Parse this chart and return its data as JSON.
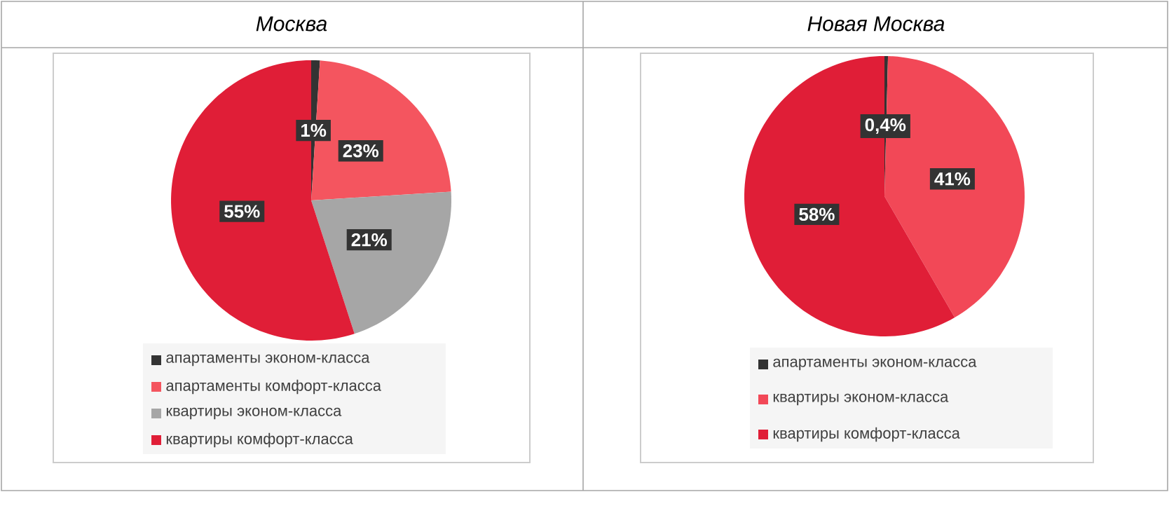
{
  "chart_data": [
    {
      "type": "pie",
      "title": "Москва",
      "categories": [
        "апартаменты эконом-класса",
        "апартаменты комфорт-класса",
        "квартиры эконом-класса",
        "квартиры комфорт-класса"
      ],
      "values": [
        1,
        23,
        21,
        55
      ],
      "value_labels": [
        "1%",
        "23%",
        "21%",
        "55%"
      ],
      "colors": [
        "#333333",
        "#f4555f",
        "#a6a6a6",
        "#e01e37"
      ],
      "legend": "bottom"
    },
    {
      "type": "pie",
      "title": "Новая Москва",
      "categories": [
        "апартаменты эконом-класса",
        "квартиры эконом-класса",
        "квартиры комфорт-класса"
      ],
      "values": [
        0.4,
        41,
        58
      ],
      "value_labels": [
        "0,4%",
        "41%",
        "58%"
      ],
      "colors": [
        "#333333",
        "#f24857",
        "#e01e37"
      ],
      "legend": "bottom"
    }
  ]
}
